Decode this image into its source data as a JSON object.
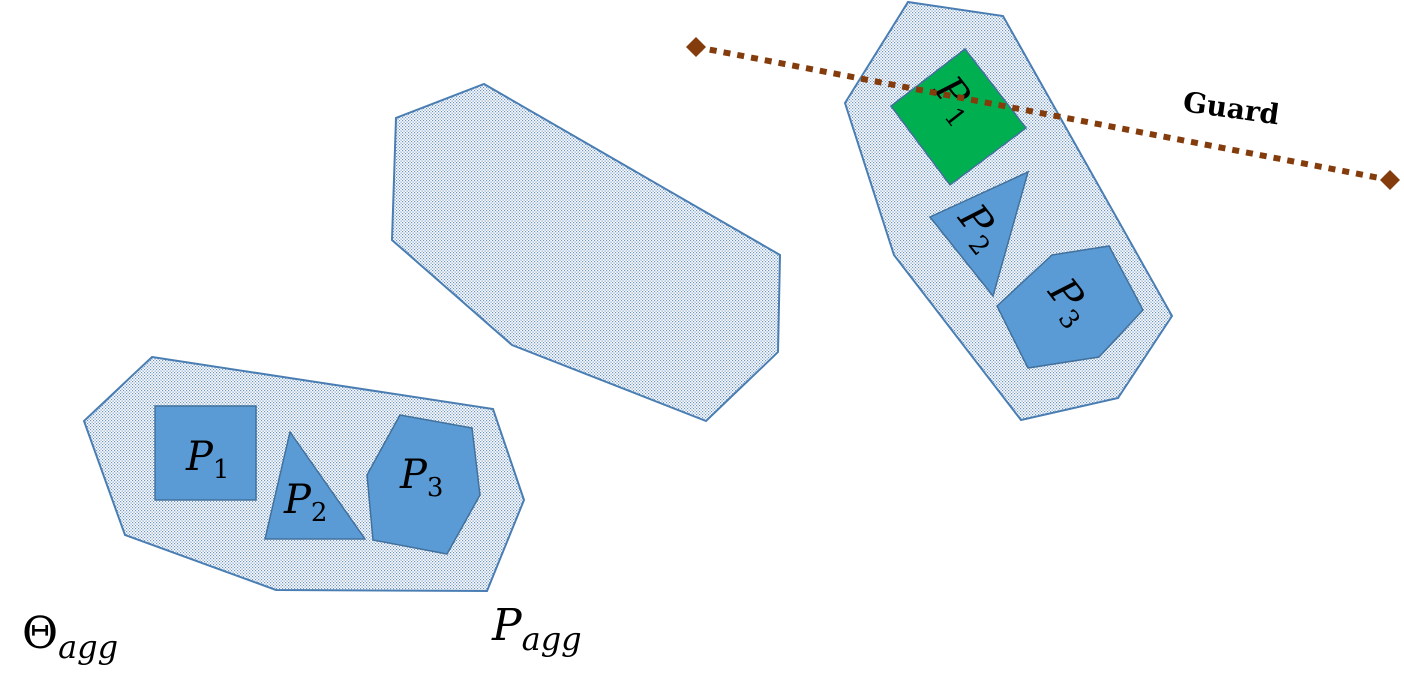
{
  "colors": {
    "hatch_stroke": "#4a7eb3",
    "hatch_fill": "#ffffff",
    "hatch_lines": "#6a93c2",
    "piece_fill": "#5b9bd5",
    "piece_stroke": "#41719c",
    "highlight_fill": "#00b050",
    "guard_color": "#843c0c"
  },
  "labels": {
    "theta_main": "Θ",
    "theta_sub": "agg",
    "p_agg_main": "P",
    "p_agg_sub": "agg",
    "guard": "Guard"
  },
  "pieces": {
    "p1_main": "P",
    "p1_sub": "1",
    "p2_main": "P",
    "p2_sub": "2",
    "p3_main": "P",
    "p3_sub": "3"
  },
  "rotated_pieces": {
    "p1_main": "P",
    "p1_sub": "1",
    "p2_main": "P",
    "p2_sub": "2",
    "p3_main": "P",
    "p3_sub": "3"
  }
}
